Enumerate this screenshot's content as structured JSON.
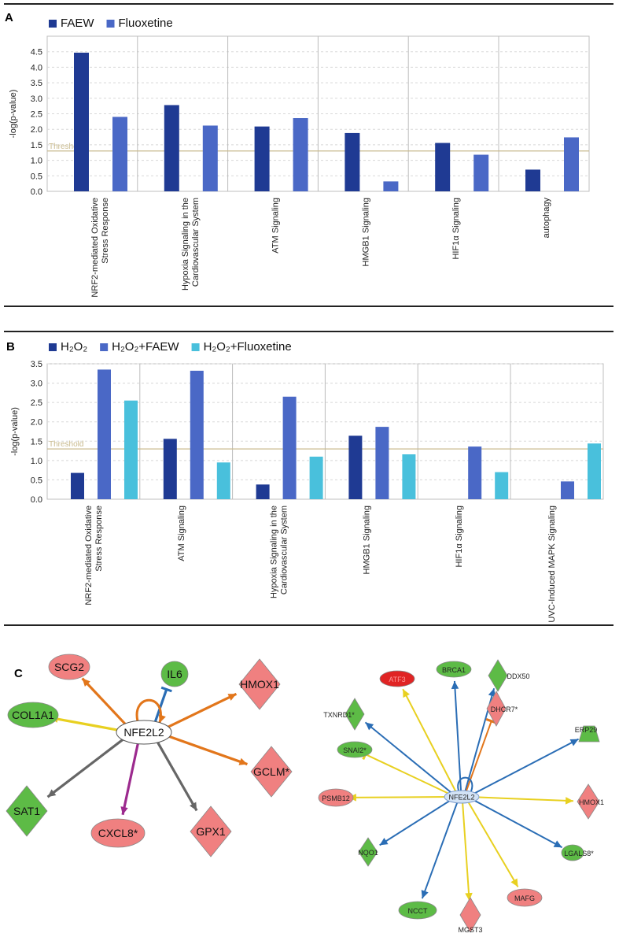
{
  "colors": {
    "dark_blue": "#1f3a93",
    "mid_blue": "#4a68c6",
    "cyan": "#49c0dc",
    "threshold": "#c8b98c",
    "grid": "#d8d8d8",
    "divider": "#bcbcbc",
    "node_red": "#f08080",
    "node_red_dark": "#e02424",
    "node_green": "#5dbb46",
    "node_blue": "#d3e3f6",
    "edge_orange": "#e2761b",
    "edge_yellow": "#e8d020",
    "edge_blue": "#2a6db5",
    "edge_gray": "#666666",
    "edge_purple": "#9c2a8e"
  },
  "panels": {
    "a": "A",
    "b": "B",
    "c": "C"
  },
  "chart_data": [
    {
      "type": "bar",
      "panel": "A",
      "title": "",
      "xlabel": "",
      "ylabel": "-log(p-value)",
      "ylim": [
        0,
        5
      ],
      "yticks": [
        "0.0",
        "0.5",
        "1.0",
        "1.5",
        "2.0",
        "2.5",
        "3.0",
        "3.5",
        "4.0",
        "4.5"
      ],
      "threshold": {
        "label": "Threshold",
        "value": 1.3
      },
      "legend_position": "top-left",
      "categories": [
        [
          "NRF2-mediated Oxidative",
          "Stress Response"
        ],
        [
          "Hypoxia Signaling in the",
          "Cardiovascular System"
        ],
        [
          "ATM Signaling"
        ],
        [
          "HMGB1 Signaling"
        ],
        [
          "HIF1α Signaling"
        ],
        [
          "autophagy"
        ]
      ],
      "series": [
        {
          "name": "FAEW",
          "color": "#1f3a93",
          "values": [
            4.47,
            2.78,
            2.09,
            1.88,
            1.56,
            0.7
          ]
        },
        {
          "name": "Fluoxetine",
          "color": "#4a68c6",
          "values": [
            2.4,
            2.12,
            2.36,
            0.32,
            1.18,
            1.74
          ]
        }
      ]
    },
    {
      "type": "bar",
      "panel": "B",
      "title": "",
      "xlabel": "",
      "ylabel": "-log(p-value)",
      "ylim": [
        0,
        3.5
      ],
      "yticks": [
        "0.0",
        "0.5",
        "1.0",
        "1.5",
        "2.0",
        "2.5",
        "3.0",
        "3.5"
      ],
      "threshold": {
        "label": "Threshold",
        "value": 1.3
      },
      "legend_position": "top-left",
      "categories": [
        [
          "NRF2-mediated Oxidative",
          "Stress Response"
        ],
        [
          "ATM Signaling"
        ],
        [
          "Hypoxia Signaling in the",
          "Cardiovascular System"
        ],
        [
          "HMGB1 Signaling"
        ],
        [
          "HIF1α Signaling"
        ],
        [
          "UVC-Induced MAPK Signaling"
        ]
      ],
      "series": [
        {
          "name": "H₂O₂",
          "color": "#1f3a93",
          "values": [
            0.68,
            1.56,
            0.38,
            1.64,
            0,
            0
          ]
        },
        {
          "name": "H₂O₂+FAEW",
          "color": "#4a68c6",
          "values": [
            3.35,
            3.32,
            2.65,
            1.87,
            1.36,
            0.46
          ]
        },
        {
          "name": "H₂O₂+Fluoxetine",
          "color": "#49c0dc",
          "values": [
            2.55,
            0.95,
            1.1,
            1.16,
            0.7,
            1.44
          ]
        }
      ]
    }
  ],
  "network_left": {
    "hub": "NFE2L2",
    "nodes": [
      {
        "label": "IL6",
        "shape": "ellipse",
        "color": "green"
      },
      {
        "label": "SCG2",
        "shape": "ellipse",
        "color": "red"
      },
      {
        "label": "HMOX1",
        "shape": "diamond",
        "color": "red"
      },
      {
        "label": "COL1A1",
        "shape": "ellipse",
        "color": "green"
      },
      {
        "label": "GCLM*",
        "shape": "diamond",
        "color": "red"
      },
      {
        "label": "SAT1",
        "shape": "diamond",
        "color": "green"
      },
      {
        "label": "CXCL8*",
        "shape": "ellipse",
        "color": "red"
      },
      {
        "label": "GPX1",
        "shape": "diamond",
        "color": "red"
      }
    ]
  },
  "network_right": {
    "hub": "NFE2L2",
    "nodes": [
      {
        "label": "ATF3",
        "shape": "ellipse",
        "color": "darkred"
      },
      {
        "label": "BRCA1",
        "shape": "ellipse",
        "color": "green"
      },
      {
        "label": "DDX50",
        "shape": "diamond",
        "color": "green"
      },
      {
        "label": "DHCR7*",
        "shape": "diamond",
        "color": "red"
      },
      {
        "label": "TXNRD1*",
        "shape": "diamond",
        "color": "green"
      },
      {
        "label": "ERP29",
        "shape": "trapezoid",
        "color": "green"
      },
      {
        "label": "SNAI2*",
        "shape": "ellipse",
        "color": "green"
      },
      {
        "label": "HMOX1",
        "shape": "diamond",
        "color": "red"
      },
      {
        "label": "PSMB12",
        "shape": "ellipse",
        "color": "red"
      },
      {
        "label": "LGALS8*",
        "shape": "ellipse",
        "color": "green"
      },
      {
        "label": "NQO1",
        "shape": "diamond",
        "color": "green"
      },
      {
        "label": "NCCT",
        "shape": "ellipse",
        "color": "green"
      },
      {
        "label": "MGST3",
        "shape": "diamond",
        "color": "red"
      },
      {
        "label": "MAFG",
        "shape": "ellipse",
        "color": "red"
      }
    ]
  }
}
